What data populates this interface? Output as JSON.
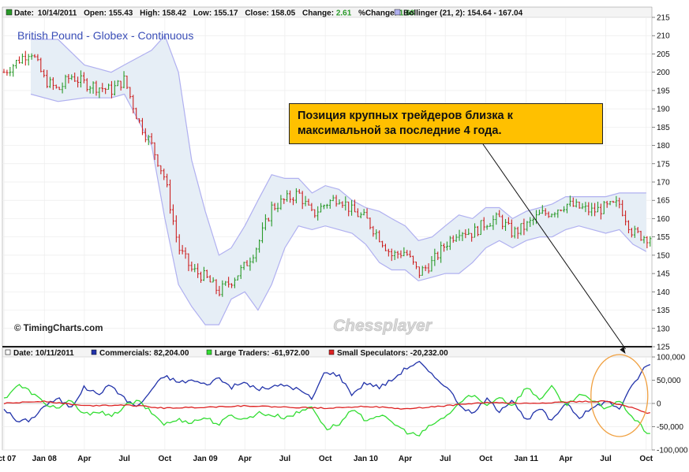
{
  "chart_data": [
    {
      "type": "ohlc",
      "title": "British Pound - Globex - Continuous",
      "copyright": "© TimingCharts.com",
      "watermark": "Chessplayer",
      "header": {
        "date_label": "Date:",
        "date": "10/14/2011",
        "open_label": "Open:",
        "open": "155.43",
        "high_label": "High:",
        "high": "158.42",
        "low_label": "Low:",
        "low": "155.17",
        "close_label": "Close:",
        "close": "158.05",
        "change_label": "Change:",
        "change": "2.61",
        "pct_change_label": "%Change:",
        "pct_change": "1.68",
        "bollinger_label": "Bollinger (21, 2): 154.64 - 167.04"
      },
      "ylim": [
        125,
        215
      ],
      "yticks": [
        "125",
        "130",
        "135",
        "140",
        "145",
        "150",
        "155",
        "160",
        "165",
        "170",
        "175",
        "180",
        "185",
        "190",
        "195",
        "200",
        "205",
        "210",
        "215"
      ],
      "colors": {
        "up": "#2a9a2a",
        "down": "#cc2222",
        "band_fill": "#e6eef6",
        "band_line": "#b0b0f0"
      },
      "close_path": [
        [
          "2007-10",
          200
        ],
        [
          "2007-12",
          206
        ],
        [
          "2008-01",
          198
        ],
        [
          "2008-02",
          195
        ],
        [
          "2008-03",
          199
        ],
        [
          "2008-04",
          197
        ],
        [
          "2008-05",
          196
        ],
        [
          "2008-06",
          195
        ],
        [
          "2008-07",
          198
        ],
        [
          "2008-08",
          187
        ],
        [
          "2008-09",
          180
        ],
        [
          "2008-10",
          171
        ],
        [
          "2008-11",
          152
        ],
        [
          "2008-12",
          146
        ],
        [
          "2009-01",
          144
        ],
        [
          "2009-02",
          140
        ],
        [
          "2009-03",
          143
        ],
        [
          "2009-04",
          147
        ],
        [
          "2009-05",
          153
        ],
        [
          "2009-06",
          163
        ],
        [
          "2009-07",
          165
        ],
        [
          "2009-08",
          167
        ],
        [
          "2009-09",
          161
        ],
        [
          "2009-10",
          164
        ],
        [
          "2009-11",
          166
        ],
        [
          "2009-12",
          162
        ],
        [
          "2010-01",
          160
        ],
        [
          "2010-02",
          155
        ],
        [
          "2010-03",
          150
        ],
        [
          "2010-04",
          151
        ],
        [
          "2010-05",
          145
        ],
        [
          "2010-06",
          148
        ],
        [
          "2010-07",
          153
        ],
        [
          "2010-08",
          157
        ],
        [
          "2010-09",
          156
        ],
        [
          "2010-10",
          159
        ],
        [
          "2010-11",
          160
        ],
        [
          "2010-12",
          156
        ],
        [
          "2011-01",
          158
        ],
        [
          "2011-02",
          161
        ],
        [
          "2011-03",
          162
        ],
        [
          "2011-04",
          164
        ],
        [
          "2011-05",
          163
        ],
        [
          "2011-06",
          162
        ],
        [
          "2011-07",
          163
        ],
        [
          "2011-08",
          164
        ],
        [
          "2011-09",
          156
        ],
        [
          "2011-10",
          155
        ]
      ],
      "bollinger_upper": [
        [
          "2007-12",
          209
        ],
        [
          "2008-02",
          209
        ],
        [
          "2008-04",
          202
        ],
        [
          "2008-06",
          200
        ],
        [
          "2008-07",
          202
        ],
        [
          "2008-09",
          206
        ],
        [
          "2008-10",
          210
        ],
        [
          "2008-11",
          200
        ],
        [
          "2008-12",
          176
        ],
        [
          "2009-01",
          162
        ],
        [
          "2009-02",
          150
        ],
        [
          "2009-03",
          152
        ],
        [
          "2009-04",
          158
        ],
        [
          "2009-05",
          165
        ],
        [
          "2009-06",
          172
        ],
        [
          "2009-07",
          171
        ],
        [
          "2009-08",
          171
        ],
        [
          "2009-09",
          167
        ],
        [
          "2009-10",
          169
        ],
        [
          "2009-11",
          168
        ],
        [
          "2009-12",
          165
        ],
        [
          "2010-01",
          163
        ],
        [
          "2010-02",
          162
        ],
        [
          "2010-03",
          160
        ],
        [
          "2010-04",
          158
        ],
        [
          "2010-05",
          154
        ],
        [
          "2010-06",
          155
        ],
        [
          "2010-07",
          158
        ],
        [
          "2010-08",
          161
        ],
        [
          "2010-09",
          160
        ],
        [
          "2010-10",
          163
        ],
        [
          "2010-11",
          163
        ],
        [
          "2010-12",
          160
        ],
        [
          "2011-01",
          162
        ],
        [
          "2011-02",
          163
        ],
        [
          "2011-03",
          164
        ],
        [
          "2011-04",
          166
        ],
        [
          "2011-05",
          166
        ],
        [
          "2011-06",
          166
        ],
        [
          "2011-07",
          166
        ],
        [
          "2011-08",
          167
        ],
        [
          "2011-09",
          167
        ],
        [
          "2011-10",
          167
        ]
      ],
      "bollinger_lower": [
        [
          "2007-12",
          194
        ],
        [
          "2008-02",
          192
        ],
        [
          "2008-04",
          193
        ],
        [
          "2008-06",
          193
        ],
        [
          "2008-07",
          194
        ],
        [
          "2008-09",
          180
        ],
        [
          "2008-10",
          160
        ],
        [
          "2008-11",
          142
        ],
        [
          "2008-12",
          136
        ],
        [
          "2009-01",
          131
        ],
        [
          "2009-02",
          131
        ],
        [
          "2009-03",
          138
        ],
        [
          "2009-04",
          140
        ],
        [
          "2009-05",
          135
        ],
        [
          "2009-06",
          142
        ],
        [
          "2009-07",
          152
        ],
        [
          "2009-08",
          158
        ],
        [
          "2009-09",
          157
        ],
        [
          "2009-10",
          158
        ],
        [
          "2009-11",
          157
        ],
        [
          "2009-12",
          156
        ],
        [
          "2010-01",
          153
        ],
        [
          "2010-02",
          148
        ],
        [
          "2010-03",
          146
        ],
        [
          "2010-04",
          146
        ],
        [
          "2010-05",
          143
        ],
        [
          "2010-06",
          144
        ],
        [
          "2010-07",
          145
        ],
        [
          "2010-08",
          145
        ],
        [
          "2010-09",
          148
        ],
        [
          "2010-10",
          152
        ],
        [
          "2010-11",
          154
        ],
        [
          "2010-12",
          152
        ],
        [
          "2011-01",
          154
        ],
        [
          "2011-02",
          155
        ],
        [
          "2011-03",
          155
        ],
        [
          "2011-04",
          157
        ],
        [
          "2011-05",
          158
        ],
        [
          "2011-06",
          157
        ],
        [
          "2011-07",
          156
        ],
        [
          "2011-08",
          157
        ],
        [
          "2011-09",
          153
        ],
        [
          "2011-10",
          151
        ]
      ]
    },
    {
      "type": "line",
      "header": {
        "date_label": "Date: 10/11/2011",
        "commercials_label": "Commercials: 82,204.00",
        "large_label": "Large Traders: -61,972.00",
        "small_label": "Small Speculators: -20,232.00"
      },
      "ylim": [
        -100000,
        100000
      ],
      "yticks": [
        "-100,000",
        "-50,000",
        "0",
        "50,000",
        "100,000"
      ],
      "ytick_values": [
        -100000,
        -50000,
        0,
        50000,
        100000
      ],
      "series": [
        {
          "name": "Commercials",
          "color": "#2233aa",
          "points": [
            [
              "2007-10",
              -10000
            ],
            [
              "2007-11",
              -40000
            ],
            [
              "2007-12",
              -35000
            ],
            [
              "2008-01",
              -5000
            ],
            [
              "2008-02",
              10000
            ],
            [
              "2008-03",
              -8000
            ],
            [
              "2008-04",
              35000
            ],
            [
              "2008-05",
              20000
            ],
            [
              "2008-06",
              40000
            ],
            [
              "2008-07",
              10000
            ],
            [
              "2008-08",
              -8000
            ],
            [
              "2008-09",
              30000
            ],
            [
              "2008-10",
              60000
            ],
            [
              "2008-11",
              45000
            ],
            [
              "2008-12",
              50000
            ],
            [
              "2009-01",
              40000
            ],
            [
              "2009-02",
              55000
            ],
            [
              "2009-03",
              35000
            ],
            [
              "2009-04",
              45000
            ],
            [
              "2009-05",
              30000
            ],
            [
              "2009-06",
              35000
            ],
            [
              "2009-07",
              40000
            ],
            [
              "2009-08",
              30000
            ],
            [
              "2009-09",
              10000
            ],
            [
              "2009-10",
              70000
            ],
            [
              "2009-11",
              60000
            ],
            [
              "2009-12",
              20000
            ],
            [
              "2010-01",
              45000
            ],
            [
              "2010-02",
              35000
            ],
            [
              "2010-03",
              50000
            ],
            [
              "2010-04",
              75000
            ],
            [
              "2010-05",
              90000
            ],
            [
              "2010-06",
              60000
            ],
            [
              "2010-07",
              40000
            ],
            [
              "2010-08",
              0
            ],
            [
              "2010-09",
              -25000
            ],
            [
              "2010-10",
              10000
            ],
            [
              "2010-11",
              -15000
            ],
            [
              "2010-12",
              10000
            ],
            [
              "2011-01",
              -40000
            ],
            [
              "2011-02",
              -10000
            ],
            [
              "2011-03",
              -40000
            ],
            [
              "2011-04",
              5000
            ],
            [
              "2011-05",
              -30000
            ],
            [
              "2011-06",
              -10000
            ],
            [
              "2011-07",
              5000
            ],
            [
              "2011-08",
              -10000
            ],
            [
              "2011-09",
              40000
            ],
            [
              "2011-10",
              82204
            ]
          ]
        },
        {
          "name": "Large Traders",
          "color": "#33dd33",
          "points": [
            [
              "2007-10",
              10000
            ],
            [
              "2007-11",
              40000
            ],
            [
              "2007-12",
              25000
            ],
            [
              "2008-01",
              0
            ],
            [
              "2008-02",
              -10000
            ],
            [
              "2008-03",
              5000
            ],
            [
              "2008-04",
              -25000
            ],
            [
              "2008-05",
              -15000
            ],
            [
              "2008-06",
              -30000
            ],
            [
              "2008-07",
              -5000
            ],
            [
              "2008-08",
              5000
            ],
            [
              "2008-09",
              -20000
            ],
            [
              "2008-10",
              -45000
            ],
            [
              "2008-11",
              -35000
            ],
            [
              "2008-12",
              -40000
            ],
            [
              "2009-01",
              -30000
            ],
            [
              "2009-02",
              -45000
            ],
            [
              "2009-03",
              -25000
            ],
            [
              "2009-04",
              -35000
            ],
            [
              "2009-05",
              -20000
            ],
            [
              "2009-06",
              -25000
            ],
            [
              "2009-07",
              -30000
            ],
            [
              "2009-08",
              -20000
            ],
            [
              "2009-09",
              -5000
            ],
            [
              "2009-10",
              -55000
            ],
            [
              "2009-11",
              -45000
            ],
            [
              "2009-12",
              -15000
            ],
            [
              "2010-01",
              -35000
            ],
            [
              "2010-02",
              -25000
            ],
            [
              "2010-03",
              -40000
            ],
            [
              "2010-04",
              -60000
            ],
            [
              "2010-05",
              -70000
            ],
            [
              "2010-06",
              -45000
            ],
            [
              "2010-07",
              -30000
            ],
            [
              "2010-08",
              0
            ],
            [
              "2010-09",
              20000
            ],
            [
              "2010-10",
              -5000
            ],
            [
              "2010-11",
              15000
            ],
            [
              "2010-12",
              -5000
            ],
            [
              "2011-01",
              35000
            ],
            [
              "2011-02",
              10000
            ],
            [
              "2011-03",
              35000
            ],
            [
              "2011-04",
              -5000
            ],
            [
              "2011-05",
              20000
            ],
            [
              "2011-06",
              5000
            ],
            [
              "2011-07",
              -10000
            ],
            [
              "2011-08",
              5000
            ],
            [
              "2011-09",
              -30000
            ],
            [
              "2011-10",
              -61972
            ]
          ]
        },
        {
          "name": "Small Speculators",
          "color": "#dd2222",
          "points": [
            [
              "2007-10",
              0
            ],
            [
              "2008-01",
              5000
            ],
            [
              "2008-04",
              -5000
            ],
            [
              "2008-07",
              -3000
            ],
            [
              "2008-10",
              -10000
            ],
            [
              "2009-01",
              -8000
            ],
            [
              "2009-04",
              -5000
            ],
            [
              "2009-07",
              -8000
            ],
            [
              "2009-10",
              -10000
            ],
            [
              "2010-01",
              -6000
            ],
            [
              "2010-04",
              -12000
            ],
            [
              "2010-07",
              -5000
            ],
            [
              "2010-10",
              2000
            ],
            [
              "2011-01",
              0
            ],
            [
              "2011-04",
              3000
            ],
            [
              "2011-07",
              5000
            ],
            [
              "2011-09",
              -10000
            ],
            [
              "2011-10",
              -20232
            ]
          ]
        }
      ]
    }
  ],
  "x_axis": {
    "start": "2007-10-01",
    "end": "2011-10-14",
    "ticks": [
      {
        "label": "Oct 07",
        "date": "2007-10-01"
      },
      {
        "label": "Jan 08",
        "date": "2008-01-01"
      },
      {
        "label": "Apr",
        "date": "2008-04-01"
      },
      {
        "label": "Jul",
        "date": "2008-07-01"
      },
      {
        "label": "Oct",
        "date": "2008-10-01"
      },
      {
        "label": "Jan 09",
        "date": "2009-01-01"
      },
      {
        "label": "Apr",
        "date": "2009-04-01"
      },
      {
        "label": "Jul",
        "date": "2009-07-01"
      },
      {
        "label": "Oct",
        "date": "2009-10-01"
      },
      {
        "label": "Jan 10",
        "date": "2010-01-01"
      },
      {
        "label": "Apr",
        "date": "2010-04-01"
      },
      {
        "label": "Jul",
        "date": "2010-07-01"
      },
      {
        "label": "Oct",
        "date": "2010-10-01"
      },
      {
        "label": "Jan 11",
        "date": "2011-01-01"
      },
      {
        "label": "Apr",
        "date": "2011-04-01"
      },
      {
        "label": "Jul",
        "date": "2011-07-01"
      },
      {
        "label": "Oct",
        "date": "2011-10-01"
      }
    ]
  },
  "annotation": {
    "text_line1": "Позиция крупных трейдеров близка к",
    "text_line2": "максимальной за последние 4 года.",
    "arrow_target": [
      "2011-08-15",
      100000
    ],
    "highlight_color": "#f0a040"
  }
}
